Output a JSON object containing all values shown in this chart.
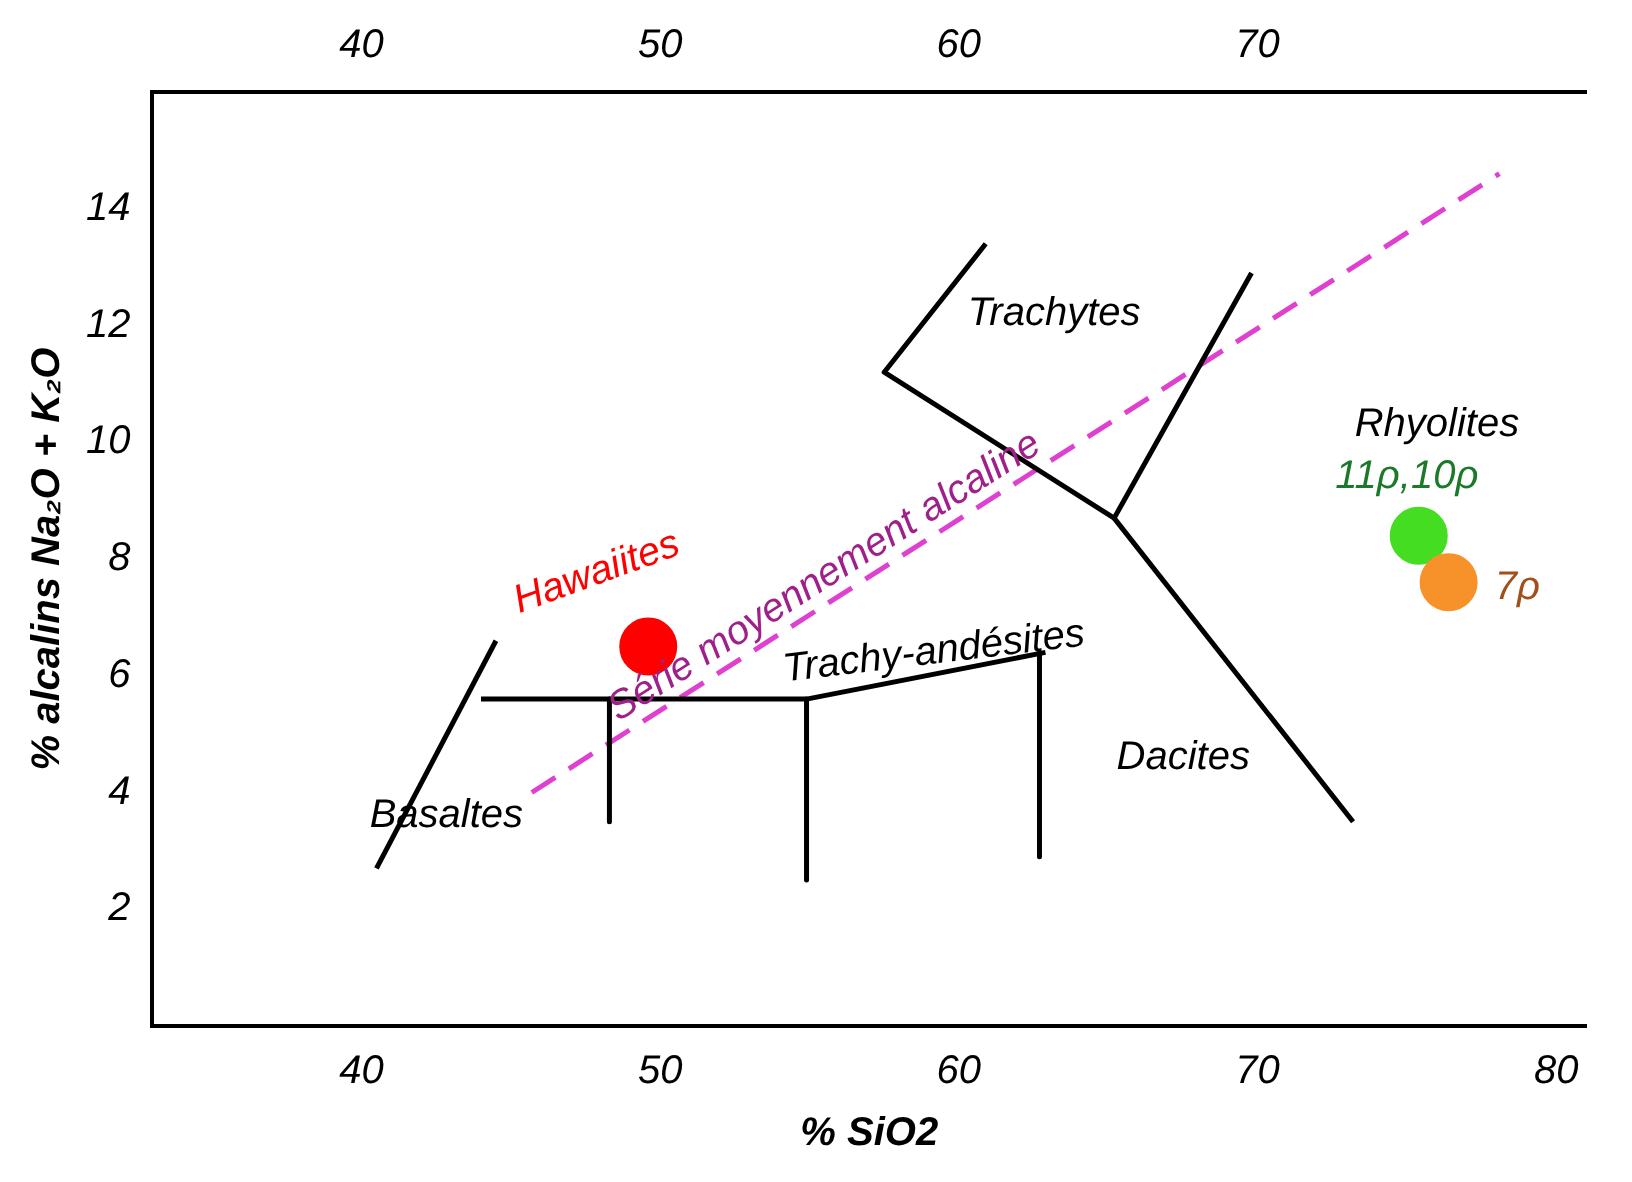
{
  "chart_data": {
    "type": "line",
    "xlabel": "% SiO2",
    "ylabel": "% alcalins Na₂O + K₂O",
    "xlim": [
      33,
      81
    ],
    "ylim": [
      0,
      16
    ],
    "xticks": [
      40,
      50,
      60,
      70,
      80
    ],
    "yticks": [
      2,
      4,
      6,
      8,
      10,
      12,
      14
    ],
    "x2lim": [
      33,
      81
    ],
    "x2ticks": [
      40,
      50,
      60,
      70
    ],
    "grid": false,
    "legend": false,
    "series": [
      {
        "color": "#000000",
        "x": [
          40.5,
          44.5
        ],
        "values": [
          2.7,
          6.6
        ]
      },
      {
        "color": "#000000",
        "x": [
          44,
          54.9,
          62.9
        ],
        "values": [
          5.6,
          5.6,
          6.4
        ]
      },
      {
        "color": "#000000",
        "x": [
          48.3,
          48.3
        ],
        "values": [
          5.6,
          3.5
        ]
      },
      {
        "color": "#000000",
        "x": [
          54.9,
          54.9
        ],
        "values": [
          5.6,
          2.5
        ]
      },
      {
        "color": "#000000",
        "x": [
          62.7,
          62.7
        ],
        "values": [
          6.4,
          2.9
        ]
      },
      {
        "color": "#000000",
        "x": [
          60.9,
          57.5,
          65.2,
          69.8
        ],
        "values": [
          13.4,
          11.2,
          8.7,
          12.9
        ]
      },
      {
        "color": "#000000",
        "x": [
          65.2,
          73.2
        ],
        "values": [
          8.7,
          3.5
        ]
      },
      {
        "color": "#e040d0",
        "line_style": "dashed",
        "x": [
          45.7,
          78.1
        ],
        "values": [
          4.0,
          14.6
        ]
      },
      {
        "type": "scatter",
        "marker": "circle",
        "x": [
          49.6,
          75.4,
          76.4
        ],
        "values": [
          6.5,
          8.4,
          7.6
        ],
        "colors": [
          "#ff0000",
          "#44dd22",
          "#f7922a"
        ]
      }
    ],
    "annotations": [
      "Trachytes",
      "Rhyolites",
      "11ρ,10ρ",
      "7ρ",
      "Hawaiites",
      "Série moyennement alcaline",
      "Trachy-andésites",
      "Basaltes",
      "Dacites"
    ]
  }
}
